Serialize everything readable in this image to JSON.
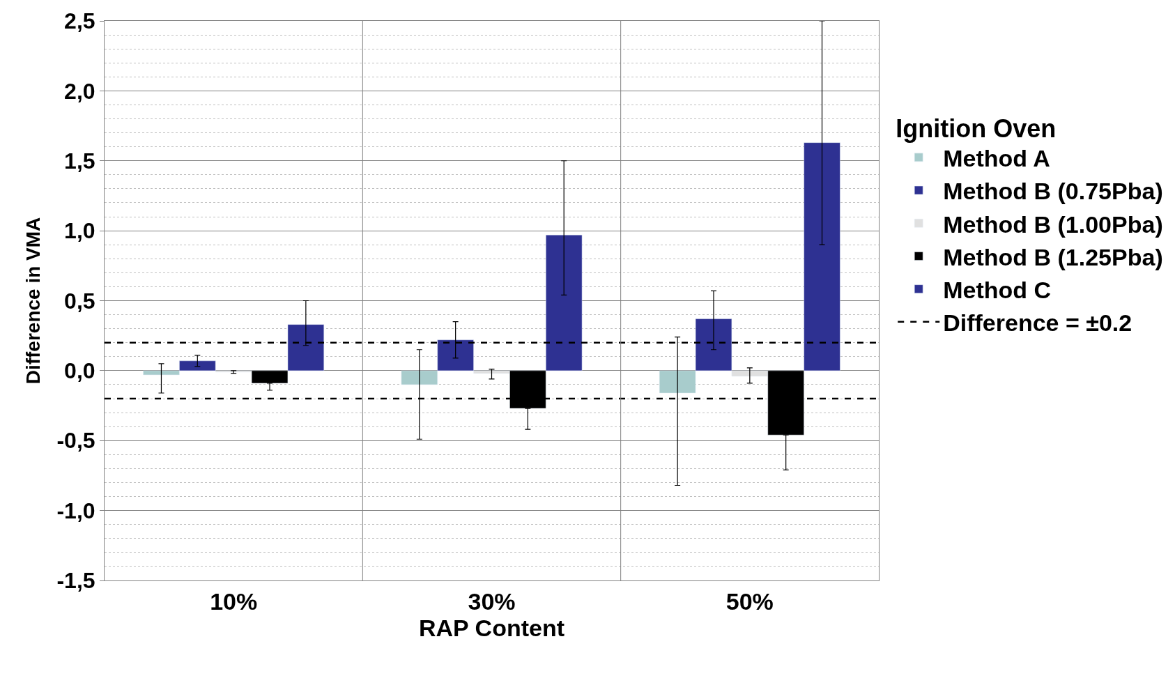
{
  "chart_data": {
    "type": "bar",
    "xlabel": "RAP Content",
    "ylabel": "Difference in VMA",
    "legend_title": "Ignition Oven",
    "categories": [
      "10%",
      "30%",
      "50%"
    ],
    "series": [
      {
        "name": "Method A",
        "color": "#a8cccc",
        "values": [
          -0.03,
          -0.1,
          -0.16
        ],
        "errors": [
          [
            -0.16,
            0.05
          ],
          [
            -0.49,
            0.15
          ],
          [
            -0.82,
            0.24
          ]
        ]
      },
      {
        "name": "Method B (0.75Pba)",
        "color": "#2e3192",
        "values": [
          0.07,
          0.22,
          0.37
        ],
        "errors": [
          [
            0.03,
            0.11
          ],
          [
            0.09,
            0.35
          ],
          [
            0.15,
            0.57
          ]
        ]
      },
      {
        "name": "Method B (1.00Pba)",
        "color": "#e0e0e0",
        "values": [
          -0.01,
          -0.02,
          -0.04
        ],
        "errors": [
          [
            -0.02,
            0.0
          ],
          [
            -0.06,
            0.01
          ],
          [
            -0.09,
            0.02
          ]
        ]
      },
      {
        "name": "Method B (1.25Pba)",
        "color": "#000000",
        "values": [
          -0.09,
          -0.27,
          -0.46
        ],
        "errors": [
          [
            -0.14,
            -0.09
          ],
          [
            -0.42,
            -0.27
          ],
          [
            -0.71,
            -0.46
          ]
        ]
      },
      {
        "name": "Method C",
        "color": "#2e3192",
        "values": [
          0.33,
          0.97,
          1.63
        ],
        "errors": [
          [
            0.18,
            0.5
          ],
          [
            0.54,
            1.5
          ],
          [
            0.9,
            2.5
          ]
        ]
      }
    ],
    "ylim": [
      -1.5,
      2.5
    ],
    "yticks": [
      {
        "value": -1.5,
        "label": "-1,5"
      },
      {
        "value": -1.0,
        "label": "-1,0"
      },
      {
        "value": -0.5,
        "label": "-0,5"
      },
      {
        "value": 0,
        "label": "0,0"
      },
      {
        "value": 0.5,
        "label": "0,5"
      },
      {
        "value": 1.0,
        "label": "1,0"
      },
      {
        "value": 1.5,
        "label": "1,5"
      },
      {
        "value": 2.0,
        "label": "2,0"
      },
      {
        "value": 2.5,
        "label": "2,5"
      }
    ],
    "grid": true,
    "legend": "right",
    "ref_lines": [
      {
        "axis": "y",
        "value": 0.2,
        "label": "Difference = ±0.2",
        "color": "#000000",
        "line_style": "dashed"
      },
      {
        "axis": "y",
        "value": -0.2,
        "label": null,
        "color": "#000000",
        "line_style": "dashed"
      }
    ]
  }
}
